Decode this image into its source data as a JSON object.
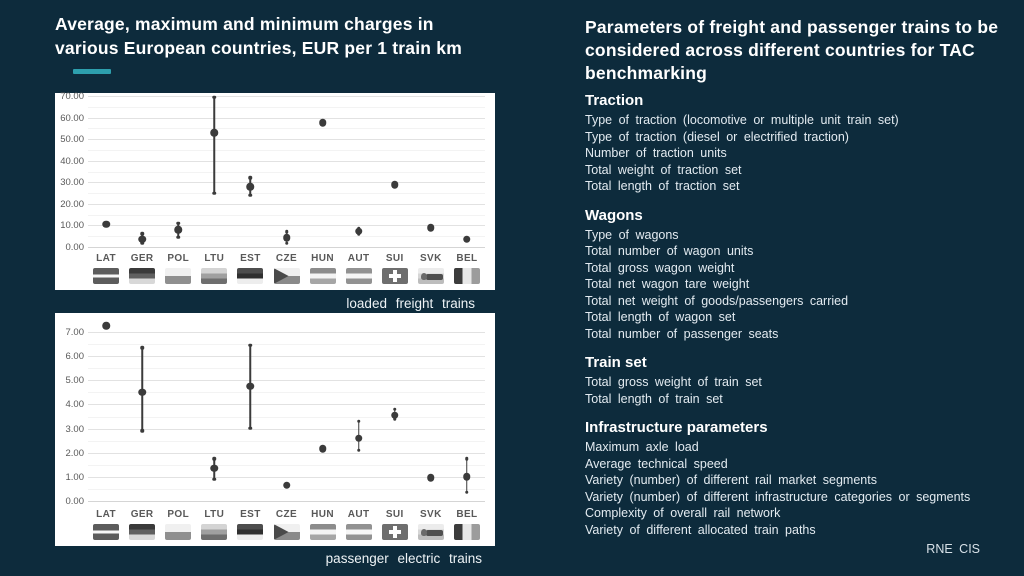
{
  "left_panel": {
    "title": "Average, maximum and minimum charges in various European countries, EUR per 1 train km"
  },
  "right_panel": {
    "title": "Parameters of freight and passenger trains to be considered across different countries for TAC benchmarking",
    "sections": [
      {
        "heading": "Traction",
        "items": [
          "Type of traction (locomotive or multiple unit train set)",
          "Type of traction (diesel or electrified traction)",
          "Number of traction units",
          "Total weight of traction set",
          "Total length of traction set"
        ]
      },
      {
        "heading": "Wagons",
        "items": [
          "Type of wagons",
          "Total number of wagon units",
          "Total gross wagon weight",
          "Total net wagon tare weight",
          "Total net weight of goods/passengers carried",
          "Total length of wagon set",
          "Total number of passenger seats"
        ]
      },
      {
        "heading": "Train set",
        "items": [
          "Total gross weight of train set",
          "Total length of train set"
        ]
      },
      {
        "heading": "Infrastructure parameters",
        "items": [
          "Maximum axle load",
          "Average technical speed",
          "Variety (number) of different rail market segments",
          "Variety (number) of different infrastructure categories or segments",
          "Complexity of overall rail network",
          "Variety of different allocated train paths"
        ]
      }
    ],
    "footer": "RNE CIS"
  },
  "colors": {
    "background": "#0d2b3c",
    "accent_teal": "#2d9fad",
    "panel_bg": "#ffffff",
    "chart_point": "#3b3b3b",
    "chart_text": "#595959",
    "gridline": "#e2e2e2"
  },
  "chart_data": [
    {
      "type": "scatter",
      "title": "loaded freight trains",
      "ylabel": "EUR per 1 train km",
      "categories": [
        "LAT",
        "GER",
        "POL",
        "LTU",
        "EST",
        "CZE",
        "HUN",
        "AUT",
        "SUI",
        "SVK",
        "BEL"
      ],
      "series": [
        {
          "name": "average",
          "values": [
            11,
            4,
            8.5,
            53.5,
            28.5,
            4.7,
            58,
            7.7,
            29.3,
            9.4,
            4
          ]
        },
        {
          "name": "maximum",
          "values": [
            null,
            6.5,
            11.5,
            70,
            32.5,
            7.5,
            null,
            9.2,
            null,
            null,
            null
          ]
        },
        {
          "name": "minimum",
          "values": [
            null,
            2.5,
            5,
            25.5,
            24.5,
            2.2,
            null,
            6.3,
            null,
            null,
            null
          ]
        }
      ],
      "ylim": [
        0,
        70
      ],
      "ytick_step": 10,
      "ytick_max": 70,
      "ytick_decimals": 2,
      "grid": true,
      "legend": "none"
    },
    {
      "type": "scatter",
      "title": "passenger electric trains",
      "ylabel": "EUR per 1 train km",
      "categories": [
        "LAT",
        "GER",
        "POL",
        "LTU",
        "EST",
        "CZE",
        "HUN",
        "AUT",
        "SUI",
        "SVK",
        "BEL"
      ],
      "series": [
        {
          "name": "average",
          "values": [
            7.3,
            4.55,
            null,
            1.4,
            4.8,
            0.7,
            2.2,
            2.65,
            3.6,
            1.0,
            1.05
          ]
        },
        {
          "name": "maximum",
          "values": [
            null,
            6.4,
            null,
            1.8,
            6.5,
            null,
            null,
            3.35,
            3.85,
            null,
            1.8
          ]
        },
        {
          "name": "minimum",
          "values": [
            null,
            2.95,
            null,
            0.95,
            3.05,
            null,
            null,
            2.15,
            3.45,
            null,
            0.4
          ]
        }
      ],
      "ylim": [
        0,
        7.5
      ],
      "ytick_step": 1,
      "ytick_max": 7,
      "ytick_decimals": 2,
      "grid": true,
      "legend": "none"
    }
  ],
  "flags": {
    "LAT": {
      "type": "h",
      "stripes": [
        "#5c5c5c",
        "#f7f7f7",
        "#5c5c5c"
      ],
      "weights": [
        2,
        1,
        2
      ]
    },
    "GER": {
      "type": "h",
      "stripes": [
        "#3a3a3a",
        "#606060",
        "#d8d8d8"
      ],
      "weights": [
        1,
        1,
        1
      ]
    },
    "POL": {
      "type": "h",
      "stripes": [
        "#f0f0f0",
        "#8f8f8f"
      ],
      "weights": [
        1,
        1
      ]
    },
    "LTU": {
      "type": "h",
      "stripes": [
        "#d4d4d4",
        "#a0a0a0",
        "#6e6e6e"
      ],
      "weights": [
        1,
        1,
        1
      ]
    },
    "EST": {
      "type": "h",
      "stripes": [
        "#4d4d4d",
        "#2f2f2f",
        "#ededed"
      ],
      "weights": [
        1,
        1,
        1
      ]
    },
    "CZE": {
      "type": "triangle",
      "stripes": [
        "#f0f0f0",
        "#8a8a8a"
      ],
      "weights": [
        1,
        1
      ],
      "triangle": "#4a4a4a"
    },
    "HUN": {
      "type": "h",
      "stripes": [
        "#8c8c8c",
        "#f4f4f4",
        "#a6a6a6"
      ],
      "weights": [
        1,
        1,
        1
      ]
    },
    "AUT": {
      "type": "h",
      "stripes": [
        "#929292",
        "#f6f6f6",
        "#929292"
      ],
      "weights": [
        1,
        1,
        1
      ]
    },
    "SUI": {
      "type": "cross",
      "stripes": [
        "#6e6e6e"
      ],
      "cross": "#ffffff"
    },
    "SVK": {
      "type": "emblem",
      "stripes": [
        "#ececec",
        "#d6d6d6",
        "#bdbdbd"
      ],
      "weights": [
        1,
        1,
        1
      ],
      "bar": "#4f4f4f",
      "emblem": "#6a6a6a"
    },
    "BEL": {
      "type": "v",
      "stripes": [
        "#3c3c3c",
        "#e8e8e8",
        "#9c9c9c"
      ],
      "weights": [
        1,
        1,
        1
      ]
    }
  }
}
